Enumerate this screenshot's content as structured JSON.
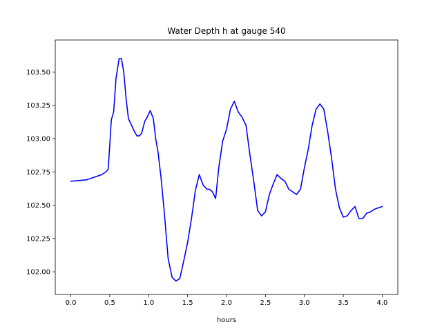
{
  "chart_data": {
    "type": "line",
    "title": "Water Depth h at gauge 540",
    "xlabel": "hours",
    "ylabel": "",
    "xlim": [
      -0.2,
      4.2
    ],
    "ylim": [
      101.83,
      103.74
    ],
    "xticks": [
      0.0,
      0.5,
      1.0,
      1.5,
      2.0,
      2.5,
      3.0,
      3.5,
      4.0
    ],
    "xtick_labels": [
      "0.0",
      "0.5",
      "1.0",
      "1.5",
      "2.0",
      "2.5",
      "3.0",
      "3.5",
      "4.0"
    ],
    "yticks": [
      102.0,
      102.25,
      102.5,
      102.75,
      103.0,
      103.25,
      103.5
    ],
    "ytick_labels": [
      "102.00",
      "102.25",
      "102.50",
      "102.75",
      "103.00",
      "103.25",
      "103.50"
    ],
    "grid": false,
    "series": [
      {
        "name": "",
        "color": "#0000ff",
        "x": [
          0.0,
          0.2,
          0.3,
          0.4,
          0.45,
          0.48,
          0.5,
          0.52,
          0.55,
          0.58,
          0.62,
          0.65,
          0.68,
          0.71,
          0.74,
          0.78,
          0.82,
          0.85,
          0.88,
          0.91,
          0.95,
          0.98,
          1.02,
          1.06,
          1.09,
          1.12,
          1.16,
          1.2,
          1.25,
          1.3,
          1.35,
          1.4,
          1.45,
          1.5,
          1.55,
          1.6,
          1.65,
          1.7,
          1.75,
          1.78,
          1.82,
          1.86,
          1.9,
          1.95,
          2.0,
          2.05,
          2.1,
          2.15,
          2.2,
          2.25,
          2.3,
          2.35,
          2.4,
          2.45,
          2.5,
          2.55,
          2.6,
          2.65,
          2.7,
          2.75,
          2.8,
          2.85,
          2.9,
          2.95,
          3.0,
          3.05,
          3.1,
          3.15,
          3.2,
          3.25,
          3.3,
          3.35,
          3.4,
          3.45,
          3.5,
          3.55,
          3.6,
          3.65,
          3.7,
          3.75,
          3.8,
          3.85,
          3.9,
          3.95,
          4.0
        ],
        "values": [
          102.68,
          102.69,
          102.71,
          102.73,
          102.75,
          102.77,
          102.95,
          103.14,
          103.2,
          103.45,
          103.6,
          103.6,
          103.5,
          103.3,
          103.15,
          103.1,
          103.05,
          103.02,
          103.02,
          103.04,
          103.13,
          103.16,
          103.21,
          103.15,
          103.0,
          102.9,
          102.7,
          102.45,
          102.1,
          101.96,
          101.93,
          101.95,
          102.08,
          102.22,
          102.4,
          102.61,
          102.73,
          102.65,
          102.62,
          102.62,
          102.6,
          102.55,
          102.78,
          102.98,
          103.07,
          103.22,
          103.28,
          103.2,
          103.16,
          103.1,
          102.88,
          102.68,
          102.46,
          102.42,
          102.45,
          102.58,
          102.66,
          102.73,
          102.7,
          102.68,
          102.62,
          102.6,
          102.58,
          102.62,
          102.78,
          102.92,
          103.1,
          103.22,
          103.26,
          103.22,
          103.05,
          102.85,
          102.62,
          102.48,
          102.41,
          102.42,
          102.46,
          102.49,
          102.4,
          102.4,
          102.44,
          102.45,
          102.47,
          102.48,
          102.49
        ]
      }
    ]
  }
}
